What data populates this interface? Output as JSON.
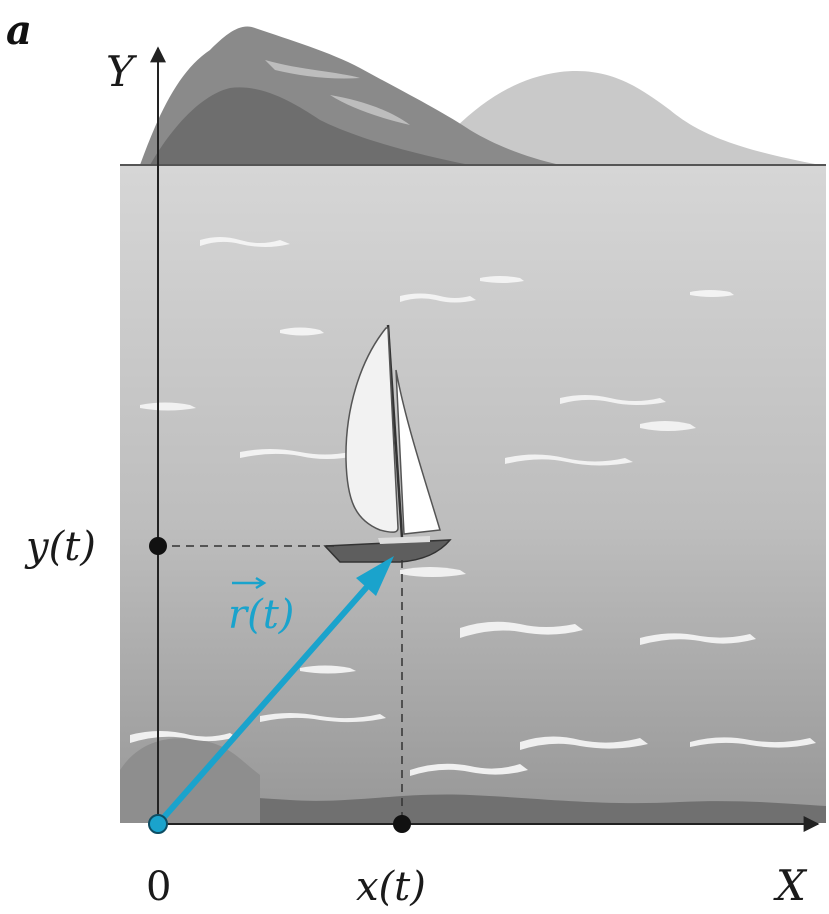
{
  "panel_label": "a",
  "axes": {
    "x_label": "X",
    "y_label": "Y",
    "origin_label": "0",
    "x_tick_label": "x(t)",
    "y_tick_label": "y(t)"
  },
  "vector": {
    "label": "r(t)",
    "color": "#1aa3cc"
  },
  "colors": {
    "axis": "#222222",
    "dashed_guides": "#333333",
    "water_top": "#d0d0d0",
    "water_bottom": "#9a9a9a",
    "mountains_dark": "#7a7a7a",
    "mountains_light": "#c4c4c4"
  }
}
